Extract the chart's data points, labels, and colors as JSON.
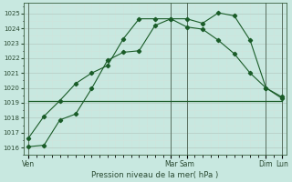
{
  "title": "",
  "xlabel": "Pression niveau de la mer( hPa )",
  "bg_color": "#c8e8e0",
  "grid_color": "#b8d0c8",
  "grid_minor_color": "#d0e4dc",
  "line_color": "#1a5c28",
  "ylim": [
    1015.5,
    1025.7
  ],
  "yticks": [
    1016,
    1017,
    1018,
    1019,
    1020,
    1021,
    1022,
    1023,
    1024,
    1025
  ],
  "xlim": [
    -0.3,
    16.3
  ],
  "vline_color": "#5a7060",
  "vlines_x": [
    0,
    9,
    10,
    15,
    16
  ],
  "line1_x": [
    0,
    1,
    2,
    3,
    4,
    5,
    6,
    7,
    8,
    9,
    10,
    11,
    12,
    13,
    14,
    15,
    16
  ],
  "line1_y": [
    1016.05,
    1016.15,
    1017.85,
    1018.25,
    1019.95,
    1021.85,
    1022.4,
    1022.5,
    1024.2,
    1024.65,
    1024.65,
    1024.35,
    1025.05,
    1024.85,
    1023.2,
    1020.0,
    1019.4
  ],
  "line2_x": [
    0,
    1,
    2,
    3,
    4,
    5,
    6,
    7,
    8,
    9,
    10,
    11,
    12,
    13,
    14,
    15,
    16
  ],
  "line2_y": [
    1016.6,
    1018.1,
    1019.15,
    1020.3,
    1021.0,
    1021.5,
    1023.3,
    1024.65,
    1024.65,
    1024.65,
    1024.1,
    1023.95,
    1023.2,
    1022.3,
    1021.0,
    1020.0,
    1019.3
  ],
  "line3_x": [
    0,
    1,
    2,
    3,
    4,
    5,
    6,
    7,
    8,
    9,
    10,
    11,
    12,
    13,
    14,
    15,
    16
  ],
  "line3_y": [
    1019.1,
    1019.1,
    1019.1,
    1019.1,
    1019.1,
    1019.1,
    1019.1,
    1019.1,
    1019.1,
    1019.1,
    1019.1,
    1019.1,
    1019.1,
    1019.1,
    1019.1,
    1019.1,
    1019.1
  ],
  "xtick_labeled_pos": [
    0,
    9,
    10,
    15,
    16
  ],
  "xtick_labeled_names": [
    "Ven",
    "Mar",
    "Sam",
    "Dim",
    "Lun"
  ],
  "figsize": [
    3.2,
    2.0
  ],
  "dpi": 100
}
